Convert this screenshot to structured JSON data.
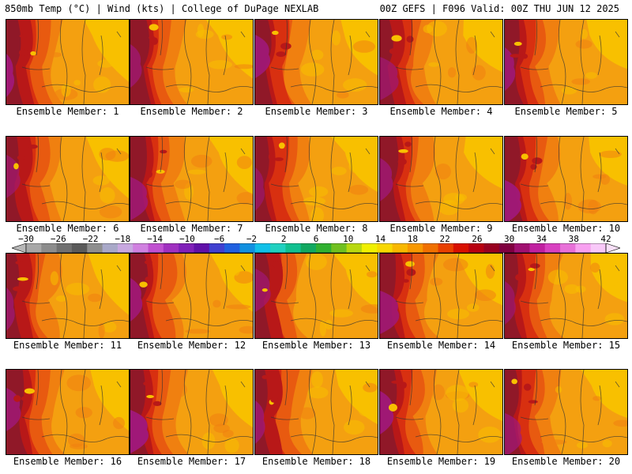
{
  "header": {
    "left": "850mb Temp (°C) | Wind (kts) | College of DuPage NEXLAB",
    "right": "00Z GEFS | F096 Valid: 00Z THU JUN 12 2025"
  },
  "member_label_prefix": "Ensemble Member: ",
  "members": [
    1,
    2,
    3,
    4,
    5,
    6,
    7,
    8,
    9,
    10,
    11,
    12,
    13,
    14,
    15,
    16,
    17,
    18,
    19,
    20
  ],
  "colorbar": {
    "tick_labels": [
      "−30",
      "−26",
      "−22",
      "−18",
      "−14",
      "−10",
      "−6",
      "−2",
      "2",
      "6",
      "10",
      "14",
      "18",
      "22",
      "26",
      "30",
      "34",
      "38",
      "42"
    ],
    "colors": [
      "#a8a8a8",
      "#8c8c8c",
      "#707070",
      "#5a5a5a",
      "#8e8e8e",
      "#a8a8c8",
      "#c8a8e0",
      "#d080e0",
      "#c050d0",
      "#a030c0",
      "#8020b8",
      "#6010a8",
      "#4040d0",
      "#2060e0",
      "#1090e0",
      "#10c0e8",
      "#20d0c0",
      "#10c090",
      "#10a860",
      "#30b030",
      "#70c020",
      "#b8d810",
      "#f0f000",
      "#f8d800",
      "#f8b800",
      "#f89800",
      "#f07000",
      "#e84000",
      "#d81000",
      "#b80010",
      "#980020",
      "#800040",
      "#a01070",
      "#c020a0",
      "#d840c0",
      "#e870d8",
      "#f8a0f0",
      "#f8c8f8"
    ],
    "warm_colors": [
      "#f8e000",
      "#f8c000",
      "#f4a010",
      "#f08010",
      "#e85a10",
      "#d83010",
      "#b81818",
      "#901828",
      "#801040",
      "#a01878",
      "#c02898"
    ]
  }
}
